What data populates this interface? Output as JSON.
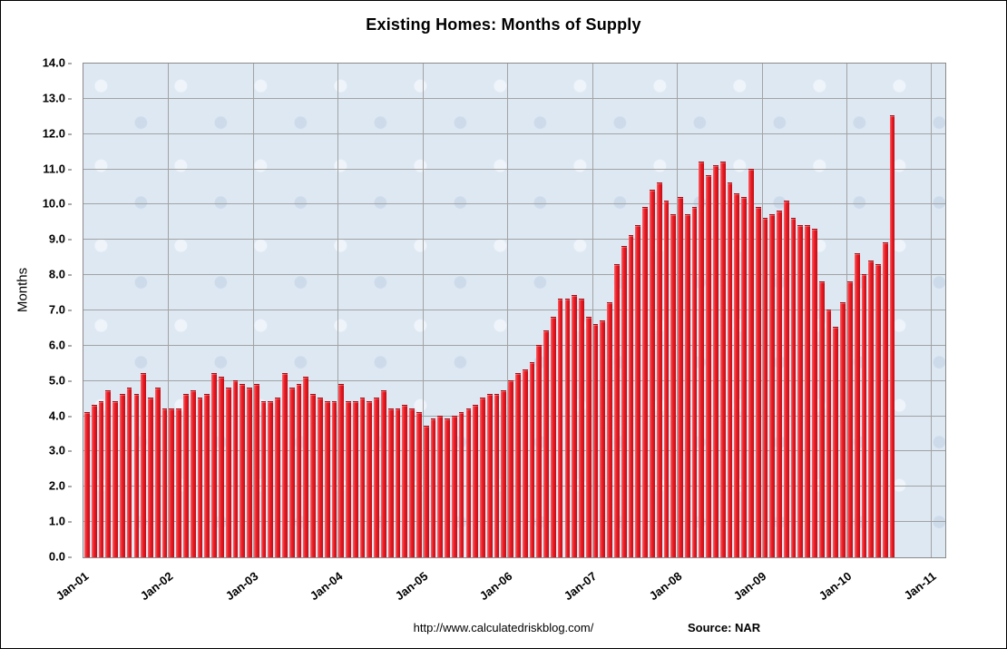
{
  "window": {
    "title": "Existing Homes: Months of Supply"
  },
  "chart_data": {
    "type": "bar",
    "title": "Existing Homes: Months of Supply",
    "xlabel": "",
    "ylabel": "Months",
    "ylim": [
      0,
      14
    ],
    "ytick_step": 1,
    "ytick_labels": [
      "0.0",
      "1.0",
      "2.0",
      "3.0",
      "4.0",
      "5.0",
      "6.0",
      "7.0",
      "8.0",
      "9.0",
      "10.0",
      "11.0",
      "12.0",
      "13.0",
      "14.0"
    ],
    "xtick_labels": [
      "Jan-01",
      "Jan-02",
      "Jan-03",
      "Jan-04",
      "Jan-05",
      "Jan-06",
      "Jan-07",
      "Jan-08",
      "Jan-09",
      "Jan-10",
      "Jan-11"
    ],
    "xtick_month_positions": [
      0,
      12,
      24,
      36,
      48,
      60,
      72,
      84,
      96,
      108,
      120
    ],
    "x_axis_total_months": 122,
    "x_start": "Jan-01",
    "x_end": "Jul-10",
    "grid": true,
    "legend": false,
    "bar_color": "#ed1c24",
    "bar_edge_color": "#a50f16",
    "plot_bg_color": "#dde8f3",
    "grid_color": "#a3a3a3",
    "values": [
      4.1,
      4.3,
      4.4,
      4.7,
      4.4,
      4.6,
      4.8,
      4.6,
      5.2,
      4.5,
      4.8,
      4.2,
      4.2,
      4.2,
      4.6,
      4.7,
      4.5,
      4.6,
      5.2,
      5.1,
      4.8,
      5.0,
      4.9,
      4.8,
      4.9,
      4.4,
      4.4,
      4.5,
      5.2,
      4.8,
      4.9,
      5.1,
      4.6,
      4.5,
      4.4,
      4.4,
      4.9,
      4.4,
      4.4,
      4.5,
      4.4,
      4.5,
      4.7,
      4.2,
      4.2,
      4.3,
      4.2,
      4.1,
      3.7,
      3.9,
      4.0,
      3.9,
      4.0,
      4.1,
      4.2,
      4.3,
      4.5,
      4.6,
      4.6,
      4.7,
      5.0,
      5.2,
      5.3,
      5.5,
      6.0,
      6.4,
      6.8,
      7.3,
      7.3,
      7.4,
      7.3,
      6.8,
      6.6,
      6.7,
      7.2,
      8.3,
      8.8,
      9.1,
      9.4,
      9.9,
      10.4,
      10.6,
      10.1,
      9.7,
      10.2,
      9.7,
      9.9,
      11.2,
      10.8,
      11.1,
      11.2,
      10.6,
      10.3,
      10.2,
      11.0,
      9.9,
      9.6,
      9.7,
      9.8,
      10.1,
      9.6,
      9.4,
      9.4,
      9.3,
      7.8,
      7.0,
      6.5,
      7.2,
      7.8,
      8.6,
      8.0,
      8.4,
      8.3,
      8.9,
      12.5
    ]
  },
  "footer": {
    "url": "http://www.calculatedriskblog.com/",
    "source_label": "Source: NAR"
  }
}
